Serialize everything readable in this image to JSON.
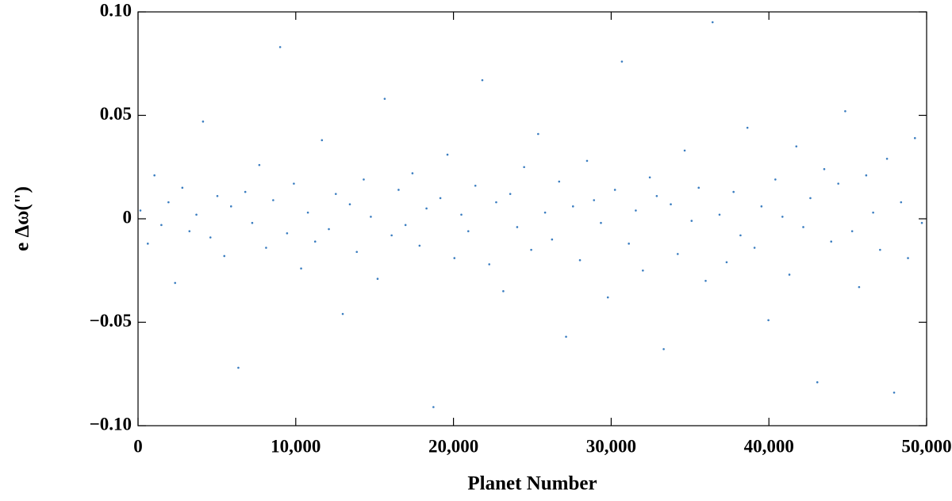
{
  "chart_data": {
    "type": "scatter",
    "x_label": "Planet Number",
    "y_label": "e Δω(\")",
    "color": "#3a7dc0",
    "xlim": [
      0,
      50000
    ],
    "ylim": [
      -0.1,
      0.1
    ],
    "xticks": [
      0,
      {
        "value": 10000,
        "label": "10,000"
      },
      {
        "value": 20000,
        "label": "20,000"
      },
      {
        "value": 30000,
        "label": "30,000"
      },
      {
        "value": 40000,
        "label": "40,000"
      },
      {
        "value": 50000,
        "label": "50,000"
      }
    ],
    "yticks": [
      {
        "value": -0.1,
        "label": "−0.10"
      },
      {
        "value": -0.05,
        "label": "−0.05"
      },
      0,
      {
        "value": 0.05,
        "label": "0.05"
      },
      {
        "value": 0.1,
        "label": "0.10"
      }
    ],
    "x": [
      150,
      620,
      1040,
      1480,
      1930,
      2350,
      2810,
      3260,
      3700,
      4120,
      4590,
      5030,
      5470,
      5900,
      6360,
      6800,
      7240,
      7690,
      8120,
      8570,
      9010,
      9450,
      9880,
      10340,
      10770,
      11230,
      11660,
      12100,
      12540,
      12980,
      13430,
      13870,
      14310,
      14760,
      15190,
      15640,
      16080,
      16520,
      16960,
      17400,
      17850,
      18290,
      18730,
      19170,
      19620,
      20060,
      20500,
      20940,
      21390,
      21830,
      22270,
      22710,
      23160,
      23600,
      24040,
      24480,
      24930,
      25370,
      25810,
      26250,
      26700,
      27140,
      27580,
      28020,
      28470,
      28910,
      29350,
      29790,
      30240,
      30680,
      31120,
      31560,
      32010,
      32450,
      32890,
      33330,
      33780,
      34220,
      34660,
      35100,
      35550,
      35990,
      36430,
      36870,
      37320,
      37760,
      38200,
      38640,
      39090,
      39530,
      39970,
      40410,
      40860,
      41300,
      41740,
      42180,
      42630,
      43070,
      43510,
      43950,
      44400,
      44840,
      45280,
      45720,
      46170,
      46610,
      47050,
      47490,
      47940,
      48380,
      48820,
      49260,
      49700
    ],
    "values": [
      0.004,
      -0.012,
      0.021,
      -0.003,
      0.008,
      -0.031,
      0.015,
      -0.006,
      0.002,
      0.047,
      -0.009,
      0.011,
      -0.018,
      0.006,
      -0.072,
      0.013,
      -0.002,
      0.026,
      -0.014,
      0.009,
      0.083,
      -0.007,
      0.017,
      -0.024,
      0.003,
      -0.011,
      0.038,
      -0.005,
      0.012,
      -0.046,
      0.007,
      -0.016,
      0.019,
      0.001,
      -0.029,
      0.058,
      -0.008,
      0.014,
      -0.003,
      0.022,
      -0.013,
      0.005,
      -0.091,
      0.01,
      0.031,
      -0.019,
      0.002,
      -0.006,
      0.016,
      0.067,
      -0.022,
      0.008,
      -0.035,
      0.012,
      -0.004,
      0.025,
      -0.015,
      0.041,
      0.003,
      -0.01,
      0.018,
      -0.057,
      0.006,
      -0.02,
      0.028,
      0.009,
      -0.002,
      -0.038,
      0.014,
      0.076,
      -0.012,
      0.004,
      -0.025,
      0.02,
      0.011,
      -0.063,
      0.007,
      -0.017,
      0.033,
      -0.001,
      0.015,
      -0.03,
      0.095,
      0.002,
      -0.021,
      0.013,
      -0.008,
      0.044,
      -0.014,
      0.006,
      -0.049,
      0.019,
      0.001,
      -0.027,
      0.035,
      -0.004,
      0.01,
      -0.079,
      0.024,
      -0.011,
      0.017,
      0.052,
      -0.006,
      -0.033,
      0.021,
      0.003,
      -0.015,
      0.029,
      -0.084,
      0.008,
      -0.019,
      0.039,
      -0.002
    ]
  }
}
